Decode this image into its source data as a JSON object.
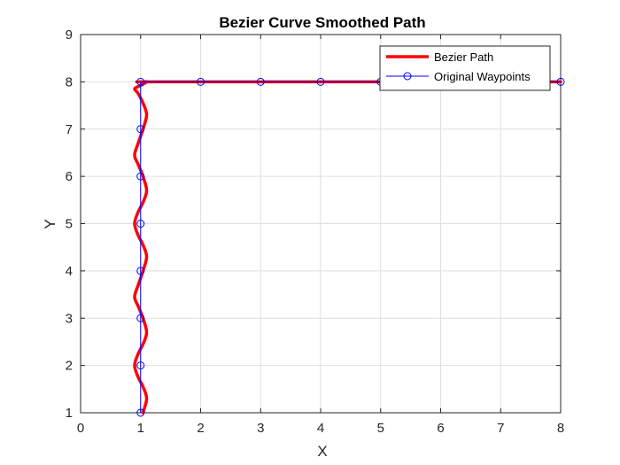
{
  "chart_data": {
    "type": "line",
    "title": "Bezier Curve Smoothed Path",
    "xlabel": "X",
    "ylabel": "Y",
    "xlim": [
      0,
      8
    ],
    "ylim": [
      1,
      9
    ],
    "xticks": [
      0,
      1,
      2,
      3,
      4,
      5,
      6,
      7,
      8
    ],
    "yticks": [
      1,
      2,
      3,
      4,
      5,
      6,
      7,
      8,
      9
    ],
    "grid": true,
    "legend_position": "top-right",
    "series": [
      {
        "name": "Bezier Path",
        "color": "#ff0000",
        "style": "thick-line",
        "x": [
          1.04,
          1.1,
          1.04,
          0.96,
          0.9,
          0.96,
          1.04,
          1.1,
          1.04,
          0.96,
          0.9,
          0.96,
          1.04,
          1.1,
          1.04,
          0.96,
          0.9,
          0.96,
          1.04,
          1.1,
          1.04,
          0.96,
          0.9,
          0.96,
          1.04,
          1.1,
          1.04,
          0.96,
          0.9,
          0.96,
          1.04,
          1.1,
          1.04,
          1.0,
          2,
          3,
          4,
          5,
          6,
          7,
          8
        ],
        "y": [
          1.0,
          1.3,
          1.55,
          1.75,
          2.0,
          2.25,
          2.45,
          2.7,
          3.0,
          3.25,
          3.45,
          3.7,
          4.0,
          4.3,
          4.55,
          4.75,
          5.0,
          5.25,
          5.45,
          5.7,
          6.0,
          6.25,
          6.45,
          6.7,
          7.0,
          7.3,
          7.55,
          7.75,
          7.85,
          7.9,
          7.95,
          8.0,
          8.0,
          8.0,
          8.0,
          8.0,
          8.0,
          8.0,
          8.0,
          8.0,
          8.0
        ]
      },
      {
        "name": "Original Waypoints",
        "color": "#0000ff",
        "style": "line-with-circles",
        "x": [
          1,
          1,
          1,
          1,
          1,
          1,
          1,
          1,
          2,
          3,
          4,
          5,
          6,
          7,
          8
        ],
        "y": [
          1,
          2,
          3,
          4,
          5,
          6,
          7,
          8,
          8,
          8,
          8,
          8,
          8,
          8,
          8
        ]
      }
    ]
  }
}
